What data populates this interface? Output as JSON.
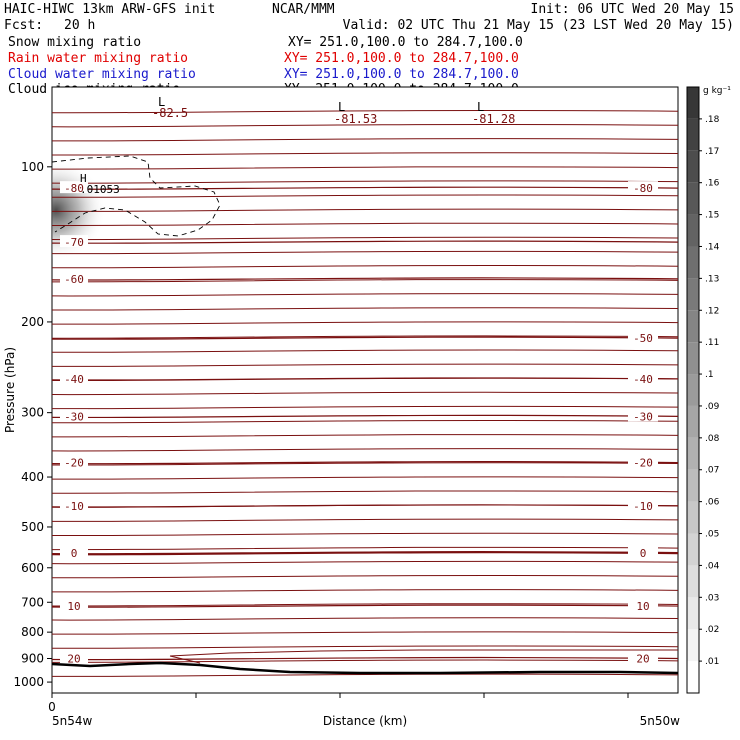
{
  "header": {
    "model": "HAIC-HIWC 13km ARW-GFS init",
    "org": "NCAR/MMM",
    "init": "Init: 06 UTC Wed 20 May 15",
    "fcst_label": "Fcst:",
    "fcst_value": "20 h",
    "valid": "Valid: 02 UTC Thu 21 May 15 (23 LST Wed 20 May 15)"
  },
  "fields": [
    {
      "name": "Snow mixing ratio",
      "xy": "XY= 251.0,100.0 to 284.7,100.0",
      "color": "#000000"
    },
    {
      "name": "Rain water mixing ratio",
      "xy": "XY= 251.0,100.0 to 284.7,100.0",
      "color": "#e00000"
    },
    {
      "name": "Cloud water mixing ratio",
      "xy": "XY= 251.0,100.0 to 284.7,100.0",
      "color": "#1a1acc"
    },
    {
      "name": "Cloud ice mixing ratio",
      "xy": "XY= 251.0,100.0 to 284.7,100.0",
      "color": "#000000"
    }
  ],
  "colors": {
    "isotherm": "#7a1010",
    "ground": "#000000",
    "cloud_contour": "#000000"
  },
  "chart_data": {
    "type": "contour",
    "title": "",
    "ylabel": "Pressure (hPa)",
    "xlabel": "Distance (km)",
    "x_tick_labels": [
      "0"
    ],
    "x_end_labels": [
      "5n54w",
      "5n50w"
    ],
    "y_axis": {
      "scale": "log",
      "range": [
        1050,
        70
      ],
      "ticks": [
        100,
        200,
        300,
        400,
        500,
        600,
        700,
        800,
        900,
        1000
      ]
    },
    "isotherms": [
      {
        "value": -80,
        "pressure": 110,
        "left_label": "-80",
        "right_label": "-80"
      },
      {
        "value": -70,
        "pressure": 140,
        "left_label": "-70",
        "right_label": ""
      },
      {
        "value": -60,
        "pressure": 165,
        "left_label": "-60",
        "right_label": ""
      },
      {
        "value": -50,
        "pressure": 215,
        "left_label": "",
        "right_label": "-50"
      },
      {
        "value": -40,
        "pressure": 258,
        "left_label": "-40",
        "right_label": "-40"
      },
      {
        "value": -30,
        "pressure": 305,
        "left_label": "-30",
        "right_label": "-30"
      },
      {
        "value": -20,
        "pressure": 375,
        "left_label": "-20",
        "right_label": "-20"
      },
      {
        "value": -10,
        "pressure": 455,
        "left_label": "-10",
        "right_label": "-10"
      },
      {
        "value": 0,
        "pressure": 562,
        "left_label": "0",
        "right_label": "0"
      },
      {
        "value": 10,
        "pressure": 712,
        "left_label": "10",
        "right_label": "10"
      },
      {
        "value": 20,
        "pressure": 900,
        "left_label": "20",
        "right_label": "20"
      }
    ],
    "annotations": [
      {
        "symbol": "L",
        "value": "-82.5"
      },
      {
        "symbol": "L",
        "value": "-81.53"
      },
      {
        "symbol": "L",
        "value": "-81.28"
      },
      {
        "symbol": "H",
        "value": ".01053"
      }
    ],
    "colorbar": {
      "unit": "g kg⁻¹",
      "levels": [
        ".01",
        ".02",
        ".03",
        ".04",
        ".05",
        ".06",
        ".07",
        ".08",
        ".09",
        ".1",
        ".11",
        ".12",
        ".13",
        ".14",
        ".15",
        ".16",
        ".17",
        ".18"
      ]
    }
  }
}
